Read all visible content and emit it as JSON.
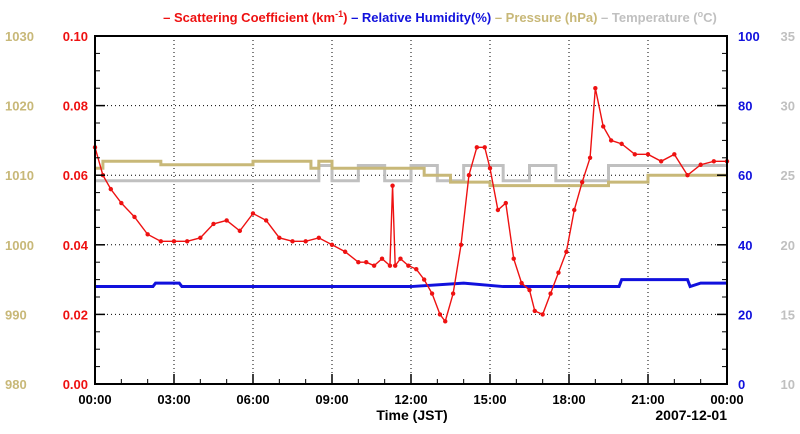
{
  "chart_data": {
    "type": "line",
    "colors": {
      "scattering": "#ee1111",
      "humidity": "#1111dd",
      "pressure": "#c8b878",
      "temperature": "#c0c0c0",
      "axis": "#000000"
    },
    "legend": [
      {
        "key": "scattering",
        "dash": "–",
        "label": "Scattering Coefficient (km",
        "sup": "-1",
        "tail": ")"
      },
      {
        "key": "humidity",
        "dash": "–",
        "label": "Relative Humidity(%)",
        "sup": "",
        "tail": ""
      },
      {
        "key": "pressure",
        "dash": "–",
        "label": "Pressure (hPa)",
        "sup": "",
        "tail": ""
      },
      {
        "key": "temperature",
        "dash": "–",
        "label": "Temperature (",
        "sup": "o",
        "tail": "C)"
      }
    ],
    "xlabel": "Time (JST)",
    "date_label": "2007-12-01",
    "x_range": [
      0,
      24
    ],
    "x_ticks": [
      {
        "v": 0,
        "label": "00:00"
      },
      {
        "v": 3,
        "label": "03:00"
      },
      {
        "v": 6,
        "label": "06:00"
      },
      {
        "v": 9,
        "label": "09:00"
      },
      {
        "v": 12,
        "label": "12:00"
      },
      {
        "v": 15,
        "label": "15:00"
      },
      {
        "v": 18,
        "label": "18:00"
      },
      {
        "v": 21,
        "label": "21:00"
      },
      {
        "v": 24,
        "label": "00:00"
      }
    ],
    "axes": {
      "pressure": {
        "range": [
          980,
          1030
        ],
        "ticks": [
          "980",
          "990",
          "1000",
          "1010",
          "1020",
          "1030"
        ]
      },
      "scattering": {
        "range": [
          0,
          0.1
        ],
        "ticks": [
          "0.00",
          "0.02",
          "0.04",
          "0.06",
          "0.08",
          "0.10"
        ]
      },
      "humidity": {
        "range": [
          0,
          100
        ],
        "ticks": [
          "0",
          "20",
          "40",
          "60",
          "80",
          "100"
        ]
      },
      "temperature": {
        "range": [
          10,
          35
        ],
        "ticks": [
          "10",
          "15",
          "20",
          "25",
          "30",
          "35"
        ]
      }
    },
    "series": [
      {
        "name": "Scattering Coefficient",
        "key": "scattering",
        "axis": "scattering",
        "style": "line-markers",
        "x": [
          0,
          0.3,
          0.6,
          1.0,
          1.5,
          2.0,
          2.5,
          3.0,
          3.5,
          4.0,
          4.5,
          5.0,
          5.5,
          6.0,
          6.5,
          7.0,
          7.5,
          8.0,
          8.5,
          9.0,
          9.5,
          10.0,
          10.3,
          10.6,
          10.9,
          11.2,
          11.3,
          11.4,
          11.6,
          11.9,
          12.2,
          12.5,
          12.8,
          13.1,
          13.3,
          13.6,
          13.9,
          14.2,
          14.5,
          14.8,
          15.0,
          15.3,
          15.6,
          15.9,
          16.2,
          16.5,
          16.7,
          17.0,
          17.3,
          17.6,
          17.9,
          18.2,
          18.5,
          18.8,
          19.0,
          19.3,
          19.6,
          20.0,
          20.5,
          21.0,
          21.5,
          22.0,
          22.5,
          23.0,
          23.5,
          24.0
        ],
        "values": [
          0.068,
          0.06,
          0.056,
          0.052,
          0.048,
          0.043,
          0.041,
          0.041,
          0.041,
          0.042,
          0.046,
          0.047,
          0.044,
          0.049,
          0.047,
          0.042,
          0.041,
          0.041,
          0.042,
          0.04,
          0.038,
          0.035,
          0.035,
          0.034,
          0.036,
          0.034,
          0.057,
          0.034,
          0.036,
          0.034,
          0.033,
          0.03,
          0.026,
          0.02,
          0.018,
          0.026,
          0.04,
          0.06,
          0.068,
          0.068,
          0.062,
          0.05,
          0.052,
          0.036,
          0.029,
          0.027,
          0.021,
          0.02,
          0.026,
          0.032,
          0.038,
          0.05,
          0.058,
          0.065,
          0.085,
          0.074,
          0.07,
          0.069,
          0.066,
          0.066,
          0.064,
          0.066,
          0.06,
          0.063,
          0.064,
          0.064
        ]
      },
      {
        "name": "Relative Humidity",
        "key": "humidity",
        "axis": "humidity",
        "style": "line",
        "x": [
          0,
          2.2,
          2.3,
          3.2,
          3.3,
          6.0,
          8.0,
          12.0,
          14.0,
          15.5,
          16.0,
          17.5,
          18.0,
          19.9,
          20.0,
          22.5,
          22.6,
          23.0,
          24.0
        ],
        "values": [
          28,
          28,
          29,
          29,
          28,
          28,
          28,
          28,
          29,
          28,
          28,
          28,
          28,
          28,
          30,
          30,
          28,
          29,
          29
        ]
      },
      {
        "name": "Pressure",
        "key": "pressure",
        "axis": "pressure",
        "style": "step",
        "x": [
          0,
          0.3,
          2.5,
          6.0,
          8.2,
          8.5,
          9.0,
          10.5,
          12.5,
          13.5,
          14.5,
          15.0,
          17.5,
          19.5,
          21.0,
          24.0
        ],
        "values": [
          1011,
          1012,
          1011.5,
          1012,
          1011,
          1012,
          1011,
          1011,
          1010,
          1009,
          1009,
          1008.5,
          1008.5,
          1009,
          1010,
          1010
        ]
      },
      {
        "name": "Temperature",
        "key": "temperature",
        "axis": "temperature",
        "style": "step",
        "x": [
          0,
          0.3,
          8.0,
          8.5,
          9.0,
          10.0,
          11.0,
          12.0,
          13.0,
          14.0,
          15.5,
          16.5,
          17.5,
          18.5,
          19.5,
          24.0
        ],
        "values": [
          24.6,
          24.6,
          24.6,
          25.7,
          24.6,
          25.7,
          24.6,
          25.7,
          24.6,
          25.7,
          24.6,
          25.7,
          24.6,
          24.6,
          25.7,
          25.7
        ]
      }
    ]
  }
}
